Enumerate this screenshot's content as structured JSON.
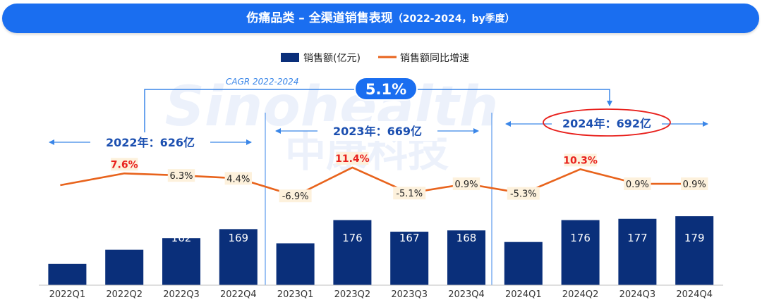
{
  "header": {
    "title": "伤痛品类 – 全渠道销售表现",
    "subtitle": "（2022-2024，by季度）"
  },
  "watermark": {
    "line1": "Sinohealth",
    "line2": "中康科技"
  },
  "colors": {
    "title_bg": "#1a6ef0",
    "bar": "#0a2f7a",
    "line": "#e8631c",
    "arrow": "#3a86e8",
    "highlight_label": "#e8201c",
    "label_box": "#fdf1dc"
  },
  "chart_data": {
    "type": "bar",
    "categories": [
      "2022Q1",
      "2022Q2",
      "2022Q3",
      "2022Q4",
      "2023Q1",
      "2023Q2",
      "2023Q3",
      "2023Q4",
      "2024Q1",
      "2024Q2",
      "2024Q3",
      "2024Q4"
    ],
    "series": [
      {
        "name": "销售额(亿元)",
        "type": "bar",
        "values": [
          142,
          153,
          162,
          169,
          158,
          176,
          167,
          168,
          159,
          176,
          177,
          179
        ]
      },
      {
        "name": "销售额同比增速",
        "type": "line",
        "values": [
          null,
          7.6,
          6.3,
          4.4,
          -6.9,
          11.4,
          -5.1,
          0.9,
          -5.3,
          10.3,
          0.9,
          0.9
        ],
        "labels": [
          "",
          "7.6%",
          "6.3%",
          "4.4%",
          "-6.9%",
          "11.4%",
          "-5.1%",
          "0.9%",
          "-5.3%",
          "10.3%",
          "0.9%",
          "0.9%"
        ],
        "highlighted": [
          false,
          true,
          false,
          false,
          false,
          true,
          false,
          false,
          false,
          true,
          false,
          false
        ]
      }
    ],
    "legend": {
      "position": "top-center",
      "items": [
        "销售额(亿元)",
        "销售额同比增速"
      ]
    },
    "annual": [
      {
        "label": "2022年：626亿",
        "start": 0,
        "end": 3
      },
      {
        "label": "2023年：669亿",
        "start": 4,
        "end": 7
      },
      {
        "label": "2024年：692亿",
        "start": 8,
        "end": 11,
        "circled": true
      }
    ],
    "cagr": {
      "label": "CAGR 2022-2024",
      "value": "5.1%"
    },
    "ylim": [
      0,
      200
    ]
  }
}
